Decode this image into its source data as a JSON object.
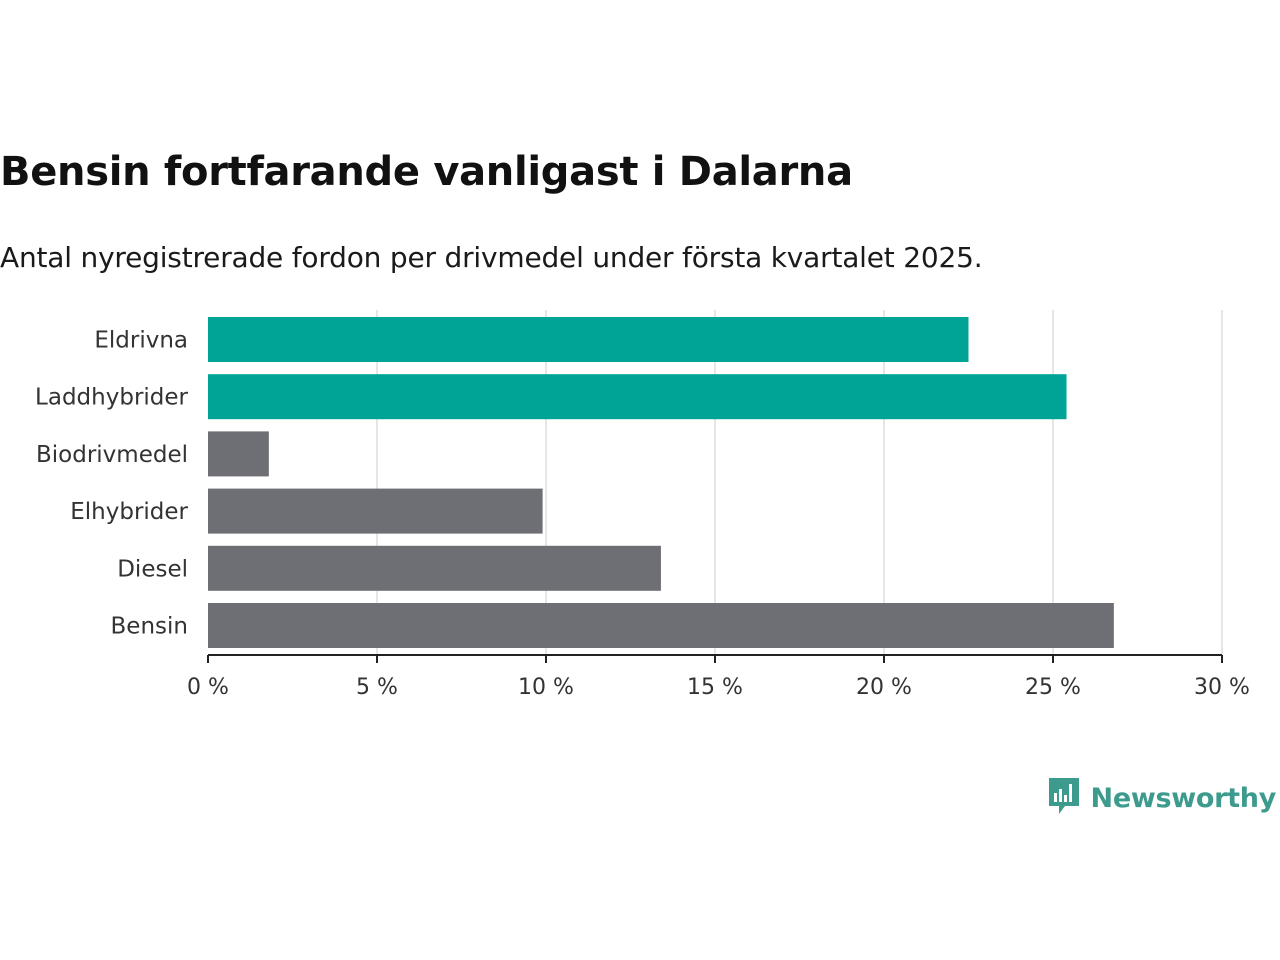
{
  "title": "Bensin fortfarande vanligast i Dalarna",
  "subtitle": "Antal nyregistrerade fordon per drivmedel under första kvartalet 2025.",
  "brand": {
    "name": "Newsworthy",
    "icon": "newsworthy-logo-icon",
    "color": "#3d9b8e"
  },
  "colors": {
    "highlight": "#00a497",
    "default": "#6e6e75",
    "grid": "#dddddd",
    "axis": "#222222"
  },
  "chart_data": {
    "type": "bar",
    "orientation": "horizontal",
    "title": "Bensin fortfarande vanligast i Dalarna",
    "subtitle": "Antal nyregistrerade fordon per drivmedel under första kvartalet 2025.",
    "categories": [
      "Eldrivna",
      "Laddhybrider",
      "Biodrivmedel",
      "Elhybrider",
      "Diesel",
      "Bensin"
    ],
    "values": [
      22.5,
      25.4,
      1.8,
      9.9,
      13.4,
      26.8
    ],
    "highlighted": [
      true,
      true,
      false,
      false,
      false,
      false
    ],
    "xlim": [
      0,
      30
    ],
    "x_ticks": [
      0,
      5,
      10,
      15,
      20,
      25,
      30
    ],
    "x_tick_labels": [
      "0 %",
      "5 %",
      "10 %",
      "15 %",
      "20 %",
      "25 %",
      "30 %"
    ],
    "xlabel": "",
    "ylabel": "",
    "grid": true
  }
}
